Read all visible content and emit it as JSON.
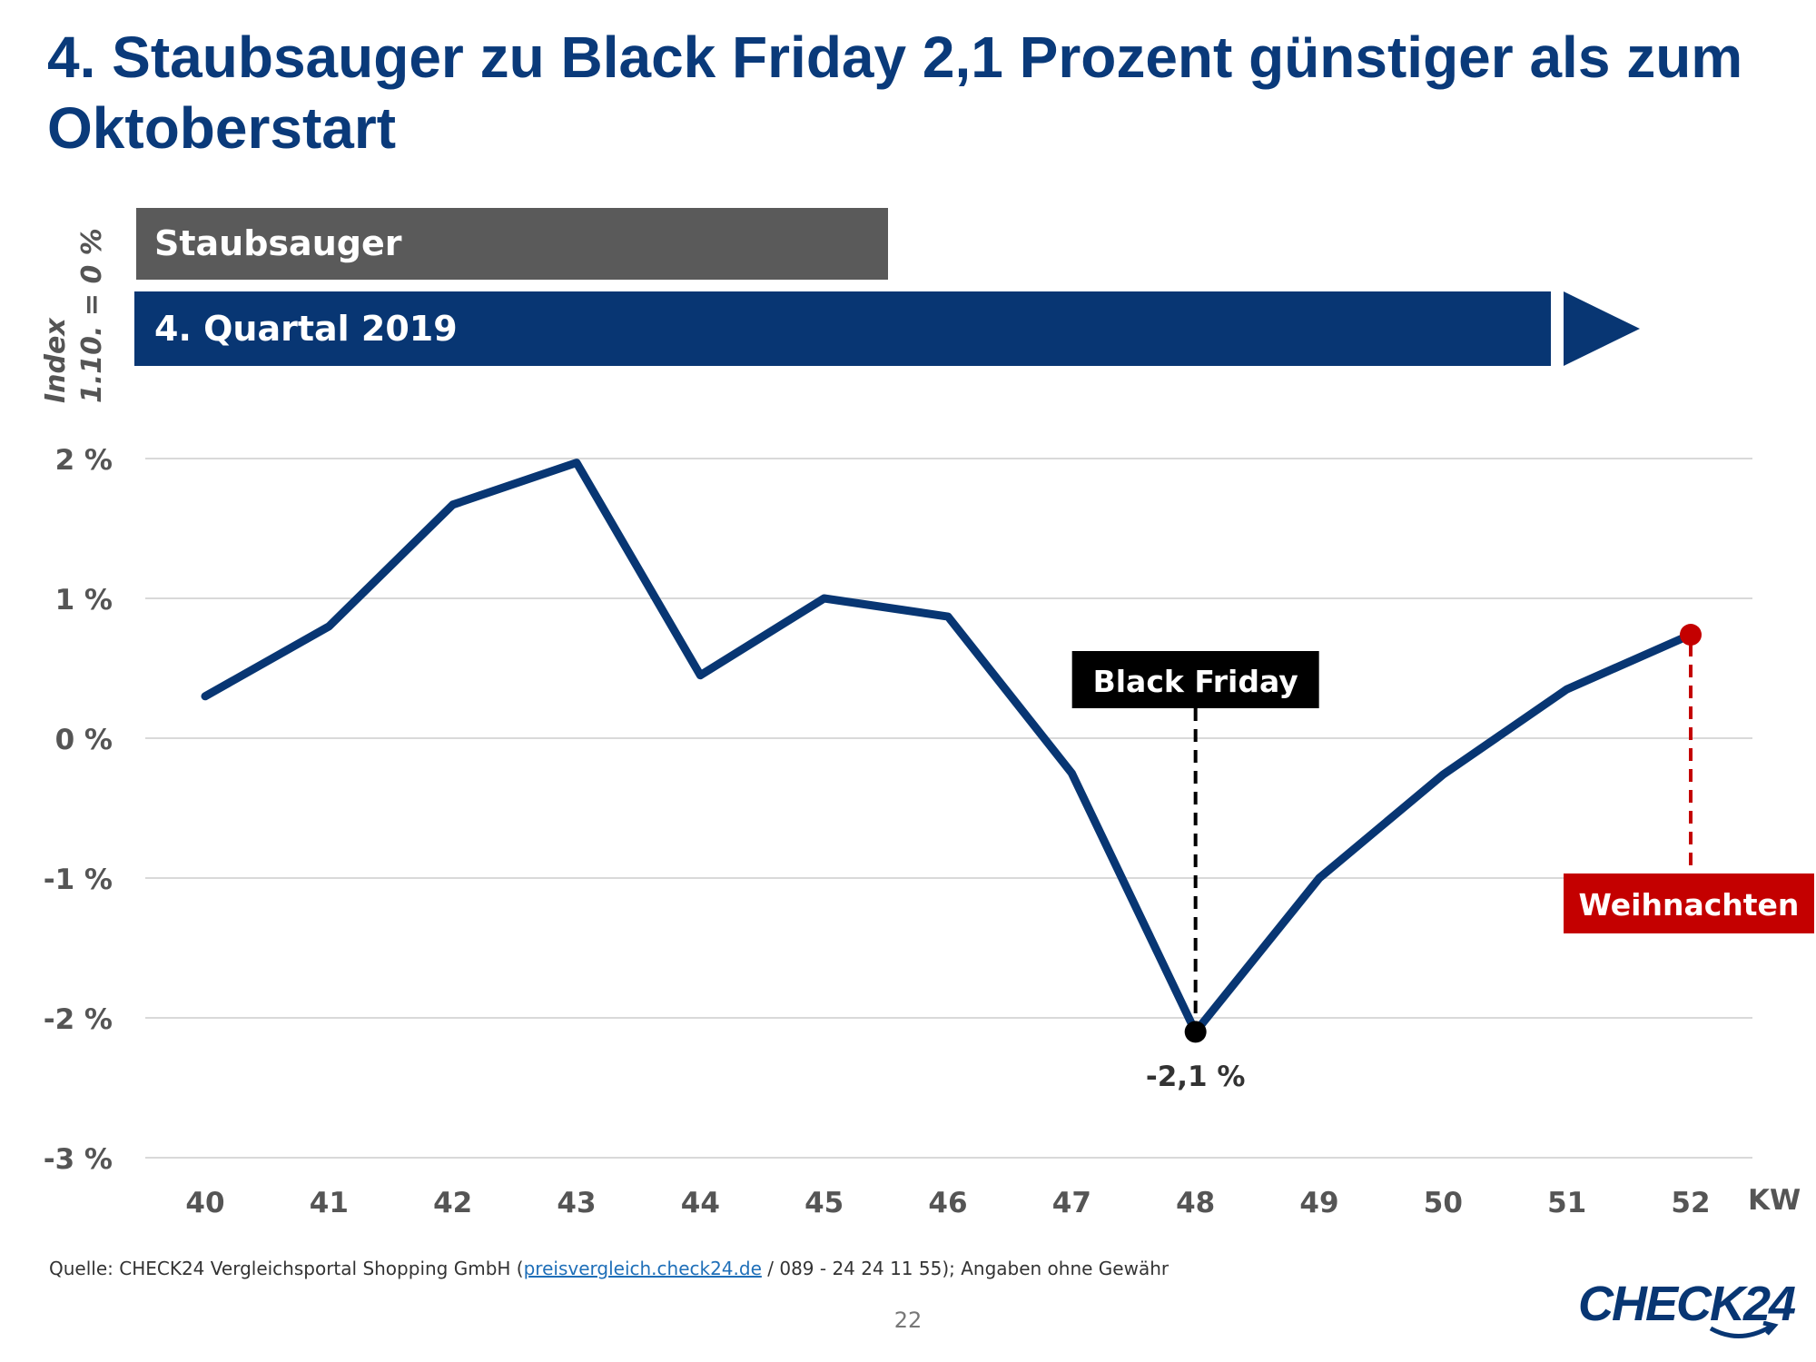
{
  "title": "4. Staubsauger zu Black Friday 2,1 Prozent günstiger als zum Oktoberstart",
  "category_label": "Staubsauger",
  "period_label": "4. Quartal 2019",
  "y_axis_title": {
    "line1": "Index",
    "line2": "1.10. = 0 %"
  },
  "colors": {
    "title": "#0a3a7a",
    "line": "#083673",
    "category_box": "#5a5a5a",
    "black_friday": "#000000",
    "christmas": "#c40000",
    "grid": "#d9d9d9"
  },
  "chart_data": {
    "type": "line",
    "title": "4. Staubsauger zu Black Friday 2,1 Prozent günstiger als zum Oktoberstart",
    "xlabel": "KW",
    "ylabel": "Index 1.10. = 0 %",
    "x": [
      40,
      41,
      42,
      43,
      44,
      45,
      46,
      47,
      48,
      49,
      50,
      51,
      52
    ],
    "x_tick_labels": [
      "40",
      "41",
      "42",
      "43",
      "44",
      "45",
      "46",
      "47",
      "48",
      "49",
      "50",
      "51",
      "52"
    ],
    "series": [
      {
        "name": "Staubsauger",
        "values": [
          0.3,
          0.8,
          1.67,
          1.97,
          0.45,
          1.0,
          0.87,
          -0.25,
          -2.1,
          -1.0,
          -0.26,
          0.35,
          0.74
        ]
      }
    ],
    "ylim": [
      -3,
      2
    ],
    "y_ticks": [
      2,
      1,
      0,
      -1,
      -2,
      -3
    ],
    "y_tick_labels": [
      "2 %",
      "1 %",
      "0 %",
      "-1 %",
      "-2 %",
      "-3 %"
    ],
    "grid": true,
    "annotations": [
      {
        "label": "Black Friday",
        "x": 48,
        "y": -2.1,
        "value_label": "-2,1 %"
      },
      {
        "label": "Weihnachten",
        "x": 52,
        "y": 0.74
      }
    ]
  },
  "source": {
    "prefix": "Quelle: CHECK24 Vergleichsportal Shopping GmbH (",
    "link": "preisvergleich.check24.de",
    "suffix": " / 089 - 24 24 11 55); Angaben ohne Gewähr"
  },
  "page_number": "22",
  "logo_text": "CHECK24"
}
